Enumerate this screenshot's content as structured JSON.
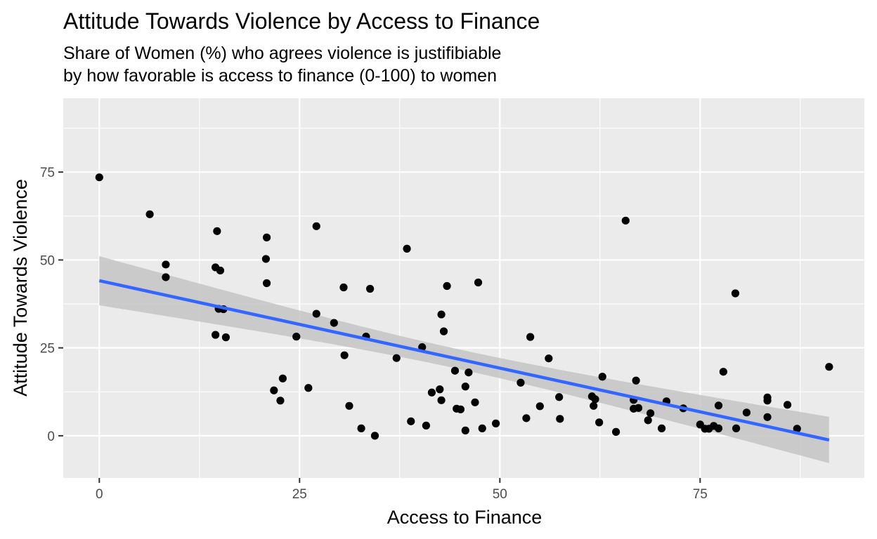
{
  "colors": {
    "panel": "#ebebeb",
    "grid_major": "#ffffff",
    "point": "#000000",
    "fit_line": "#3366ff",
    "ribbon": "#c4c4c4"
  },
  "chart_data": {
    "type": "scatter",
    "title": "Attitude Towards Violence by Access to Finance",
    "subtitle_lines": [
      "Share of Women (%) who agrees violence is justifibiable",
      "by how favorable is access to finance (0-100) to women"
    ],
    "xlabel": "Access to Finance",
    "ylabel": "Attitude Towards Violence",
    "xlim": [
      -4.5,
      95.5
    ],
    "ylim": [
      -12,
      96
    ],
    "x_ticks": [
      0,
      25,
      50,
      75
    ],
    "y_ticks": [
      0,
      25,
      50,
      75
    ],
    "x_minor": [
      12.5,
      37.5,
      62.5,
      87.5
    ],
    "y_minor": [
      12.5,
      37.5,
      62.5,
      87.5
    ],
    "grid": true,
    "legend": "none",
    "points": [
      {
        "x": 0,
        "y": 73.5
      },
      {
        "x": 6.3,
        "y": 63
      },
      {
        "x": 8.3,
        "y": 48.7
      },
      {
        "x": 8.3,
        "y": 45.1
      },
      {
        "x": 14.5,
        "y": 47.9
      },
      {
        "x": 14.7,
        "y": 58.2
      },
      {
        "x": 15.1,
        "y": 47
      },
      {
        "x": 14.9,
        "y": 36.1
      },
      {
        "x": 15.5,
        "y": 36
      },
      {
        "x": 14.5,
        "y": 28.7
      },
      {
        "x": 15.8,
        "y": 28
      },
      {
        "x": 20.9,
        "y": 56.4
      },
      {
        "x": 20.8,
        "y": 50.3
      },
      {
        "x": 20.9,
        "y": 43.4
      },
      {
        "x": 21.8,
        "y": 12.9
      },
      {
        "x": 22.6,
        "y": 10
      },
      {
        "x": 22.9,
        "y": 16.3
      },
      {
        "x": 24.6,
        "y": 28.2
      },
      {
        "x": 26.1,
        "y": 13.6
      },
      {
        "x": 27.1,
        "y": 59.6
      },
      {
        "x": 27.1,
        "y": 34.7
      },
      {
        "x": 29.3,
        "y": 32.1
      },
      {
        "x": 30.5,
        "y": 42.2
      },
      {
        "x": 30.6,
        "y": 22.9
      },
      {
        "x": 31.2,
        "y": 8.5
      },
      {
        "x": 32.7,
        "y": 2.1
      },
      {
        "x": 33.3,
        "y": 28.2
      },
      {
        "x": 33.8,
        "y": 41.8
      },
      {
        "x": 34.4,
        "y": 0
      },
      {
        "x": 37.1,
        "y": 22.1
      },
      {
        "x": 38.4,
        "y": 53.2
      },
      {
        "x": 38.9,
        "y": 4.1
      },
      {
        "x": 40.3,
        "y": 25.2
      },
      {
        "x": 40.8,
        "y": 2.9
      },
      {
        "x": 41.5,
        "y": 12.3
      },
      {
        "x": 42.5,
        "y": 13.2
      },
      {
        "x": 42.7,
        "y": 34.5
      },
      {
        "x": 42.7,
        "y": 10.1
      },
      {
        "x": 43,
        "y": 29.7
      },
      {
        "x": 43.4,
        "y": 42.6
      },
      {
        "x": 44.4,
        "y": 18.5
      },
      {
        "x": 44.6,
        "y": 7.7
      },
      {
        "x": 45.1,
        "y": 7.5
      },
      {
        "x": 45.7,
        "y": 1.5
      },
      {
        "x": 45.7,
        "y": 14
      },
      {
        "x": 46.1,
        "y": 18
      },
      {
        "x": 46.9,
        "y": 9.5
      },
      {
        "x": 47.3,
        "y": 43.6
      },
      {
        "x": 47.8,
        "y": 2.1
      },
      {
        "x": 49.5,
        "y": 3.5
      },
      {
        "x": 52.6,
        "y": 15.1
      },
      {
        "x": 53.3,
        "y": 5
      },
      {
        "x": 53.8,
        "y": 28.1
      },
      {
        "x": 55,
        "y": 8.4
      },
      {
        "x": 56.1,
        "y": 22
      },
      {
        "x": 57.4,
        "y": 11
      },
      {
        "x": 57.5,
        "y": 4.8
      },
      {
        "x": 61.5,
        "y": 11.2
      },
      {
        "x": 61.7,
        "y": 8.5
      },
      {
        "x": 61.9,
        "y": 10.4
      },
      {
        "x": 62.4,
        "y": 3.8
      },
      {
        "x": 62.8,
        "y": 16.8
      },
      {
        "x": 64.5,
        "y": 1.1
      },
      {
        "x": 65.7,
        "y": 61.2
      },
      {
        "x": 66.7,
        "y": 10.2
      },
      {
        "x": 66.7,
        "y": 7.7
      },
      {
        "x": 67,
        "y": 15.7
      },
      {
        "x": 67.3,
        "y": 7.9
      },
      {
        "x": 68.5,
        "y": 4.4
      },
      {
        "x": 68.8,
        "y": 6.4
      },
      {
        "x": 70.2,
        "y": 2.1
      },
      {
        "x": 70.8,
        "y": 9.8
      },
      {
        "x": 72.9,
        "y": 7.8
      },
      {
        "x": 75,
        "y": 3.2
      },
      {
        "x": 75.6,
        "y": 2
      },
      {
        "x": 76.1,
        "y": 2
      },
      {
        "x": 76.7,
        "y": 2.8
      },
      {
        "x": 77.3,
        "y": 2.1
      },
      {
        "x": 77.3,
        "y": 8.6
      },
      {
        "x": 77.9,
        "y": 18.2
      },
      {
        "x": 79.4,
        "y": 40.5
      },
      {
        "x": 79.5,
        "y": 2.1
      },
      {
        "x": 80.8,
        "y": 6.6
      },
      {
        "x": 83.4,
        "y": 10.9
      },
      {
        "x": 83.4,
        "y": 10
      },
      {
        "x": 83.4,
        "y": 5.3
      },
      {
        "x": 85.9,
        "y": 8.8
      },
      {
        "x": 87.1,
        "y": 2
      },
      {
        "x": 91.1,
        "y": 19.6
      }
    ],
    "fit": {
      "method": "linear",
      "x": [
        0,
        91.1
      ],
      "y": [
        44.1,
        -1.2
      ],
      "ci_lower": [
        37.2,
        -7.8
      ],
      "ci_upper": [
        51.2,
        5.4
      ],
      "ci_x_mid": 44.6,
      "ci_mid_halfwidth": 2.8
    }
  }
}
